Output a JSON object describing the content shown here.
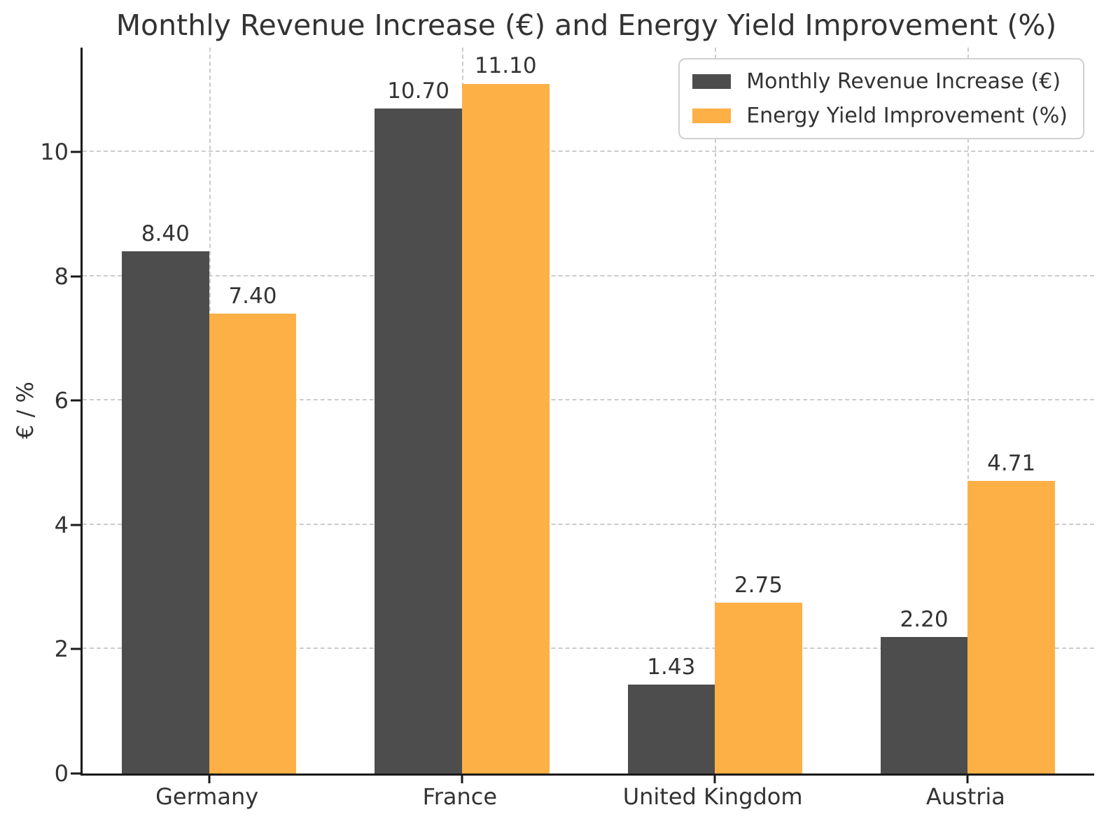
{
  "chart_data": {
    "type": "bar",
    "title": "Monthly Revenue Increase (€) and Energy Yield Improvement (%)",
    "categories": [
      "Germany",
      "France",
      "United Kingdom",
      "Austria"
    ],
    "series": [
      {
        "name": "Monthly Revenue Increase (€)",
        "color": "#4d4d4d",
        "values": [
          8.4,
          10.7,
          1.43,
          2.2
        ],
        "labels": [
          "8.40",
          "10.70",
          "1.43",
          "2.20"
        ]
      },
      {
        "name": "Energy Yield Improvement (%)",
        "color": "#fcb045",
        "values": [
          7.4,
          11.1,
          2.75,
          4.71
        ],
        "labels": [
          "7.40",
          "11.10",
          "2.75",
          "4.71"
        ]
      }
    ],
    "xlabel": "",
    "ylabel": "€ / %",
    "yticks": [
      0,
      2,
      4,
      6,
      8,
      10
    ],
    "ylim": [
      0,
      11.68
    ],
    "grid": true,
    "grid_style": "dashed",
    "legend_position": "upper right",
    "colors": {
      "grid": "#cccccc",
      "spine": "#1a1a1a",
      "text": "#333333",
      "legend_border": "#d0d0d0"
    }
  }
}
